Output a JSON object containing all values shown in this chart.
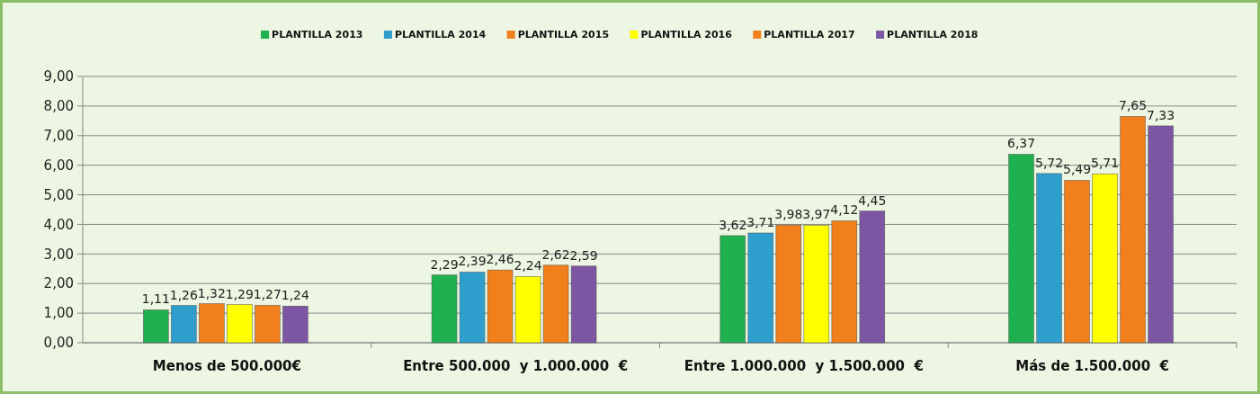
{
  "chart_data": {
    "type": "bar",
    "categories": [
      "Menos de 500.000€",
      "Entre 500.000  y 1.000.000  €",
      "Entre 1.000.000  y 1.500.000  €",
      "Más de 1.500.000  €"
    ],
    "series": [
      {
        "name": "PLANTILLA 2013",
        "color": "#1fb04f",
        "values": [
          1.11,
          2.29,
          3.62,
          6.37
        ],
        "value_labels": [
          "1,11",
          "2,29",
          "3,62",
          "6,37"
        ]
      },
      {
        "name": "PLANTILLA 2014",
        "color": "#2e9fcc",
        "values": [
          1.26,
          2.39,
          3.71,
          5.72
        ],
        "value_labels": [
          "1,26",
          "2,39",
          "3,71",
          "5,72"
        ]
      },
      {
        "name": "PLANTILLA 2015",
        "color": "#f07f1c",
        "values": [
          1.32,
          2.46,
          3.98,
          5.49
        ],
        "value_labels": [
          "1,32",
          "2,46",
          "3,98",
          "5,49"
        ]
      },
      {
        "name": "PLANTILLA 2016",
        "color": "#ffff00",
        "values": [
          1.29,
          2.24,
          3.97,
          5.71
        ],
        "value_labels": [
          "1,29",
          "2,24",
          "3,97",
          "5,71"
        ]
      },
      {
        "name": "PLANTILLA 2017",
        "color": "#f07f1c",
        "values": [
          1.27,
          2.62,
          4.12,
          7.65
        ],
        "value_labels": [
          "1,27",
          "2,62",
          "4,12",
          "7,65"
        ]
      },
      {
        "name": "PLANTILLA 2018",
        "color": "#7d56a3",
        "values": [
          1.24,
          2.59,
          4.45,
          7.33
        ],
        "value_labels": [
          "1,24",
          "2,59",
          "4,45",
          "7,33"
        ]
      }
    ],
    "ylim": [
      0,
      9
    ],
    "yticks": [
      {
        "value": 0,
        "label": "0,00"
      },
      {
        "value": 1,
        "label": "1,00"
      },
      {
        "value": 2,
        "label": "2,00"
      },
      {
        "value": 3,
        "label": "3,00"
      },
      {
        "value": 4,
        "label": "4,00"
      },
      {
        "value": 5,
        "label": "5,00"
      },
      {
        "value": 6,
        "label": "6,00"
      },
      {
        "value": 7,
        "label": "7,00"
      },
      {
        "value": 8,
        "label": "8,00"
      },
      {
        "value": 9,
        "label": "9,00"
      }
    ],
    "grid": "y",
    "legend": "top"
  }
}
